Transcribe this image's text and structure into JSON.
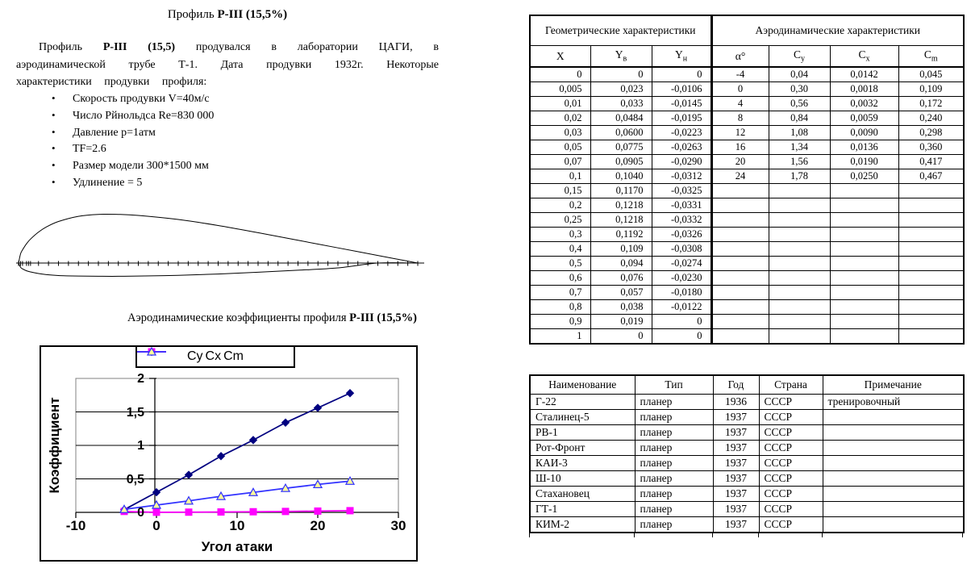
{
  "doc": {
    "title": {
      "normal": "Профиль ",
      "bold": "Р-III (15,5%)"
    },
    "paragraph": {
      "start": "Профиль ",
      "bold": "Р-III (15,5)",
      "rest": " продувался в лаборатории ЦАГИ, в аэродинамической трубе Т-1. Дата продувки 1932г. Некоторые характеристики продувки профиля:"
    },
    "bullets": [
      "Скорость продувки V=40м/с",
      "Число Рйнольдса Re=830 000",
      "Давление р=1атм",
      "TF=2.6",
      "Размер модели 300*1500 мм",
      "Удлинение = 5"
    ],
    "figure_caption": {
      "normal": "Аэродинамические коэффициенты профиля ",
      "bold": "Р-III (15,5%)"
    }
  },
  "geo_table": {
    "section_headers": [
      "Геометрические характеристики",
      "Аэродинамические характеристики"
    ],
    "col_headers": [
      {
        "base": "X",
        "sub": ""
      },
      {
        "base": "Y",
        "sub": "в"
      },
      {
        "base": "Y",
        "sub": "н"
      },
      {
        "base": "α°",
        "sub": ""
      },
      {
        "base": "C",
        "sub": "y"
      },
      {
        "base": "C",
        "sub": "x"
      },
      {
        "base": "C",
        "sub": "m"
      }
    ],
    "geometry_rows": [
      [
        "0",
        "0",
        "0"
      ],
      [
        "0,005",
        "0,023",
        "-0,0106"
      ],
      [
        "0,01",
        "0,033",
        "-0,0145"
      ],
      [
        "0,02",
        "0,0484",
        "-0,0195"
      ],
      [
        "0,03",
        "0,0600",
        "-0,0223"
      ],
      [
        "0,05",
        "0,0775",
        "-0,0263"
      ],
      [
        "0,07",
        "0,0905",
        "-0,0290"
      ],
      [
        "0,1",
        "0,1040",
        "-0,0312"
      ],
      [
        "0,15",
        "0,1170",
        "-0,0325"
      ],
      [
        "0,2",
        "0,1218",
        "-0,0331"
      ],
      [
        "0,25",
        "0,1218",
        "-0,0332"
      ],
      [
        "0,3",
        "0,1192",
        "-0,0326"
      ],
      [
        "0,4",
        "0,109",
        "-0,0308"
      ],
      [
        "0,5",
        "0,094",
        "-0,0274"
      ],
      [
        "0,6",
        "0,076",
        "-0,0230"
      ],
      [
        "0,7",
        "0,057",
        "-0,0180"
      ],
      [
        "0,8",
        "0,038",
        "-0,0122"
      ],
      [
        "0,9",
        "0,019",
        "0"
      ],
      [
        "1",
        "0",
        "0"
      ]
    ],
    "aero_rows": [
      [
        "-4",
        "0,04",
        "0,0142",
        "0,045"
      ],
      [
        "0",
        "0,30",
        "0,0018",
        "0,109"
      ],
      [
        "4",
        "0,56",
        "0,0032",
        "0,172"
      ],
      [
        "8",
        "0,84",
        "0,0059",
        "0,240"
      ],
      [
        "12",
        "1,08",
        "0,0090",
        "0,298"
      ],
      [
        "16",
        "1,34",
        "0,0136",
        "0,360"
      ],
      [
        "20",
        "1,56",
        "0,0190",
        "0,417"
      ],
      [
        "24",
        "1,78",
        "0,0250",
        "0,467"
      ]
    ]
  },
  "glider_table": {
    "headers": [
      "Наименование",
      "Тип",
      "Год",
      "Страна",
      "Примечание"
    ],
    "rows": [
      [
        "Г-22",
        "планер",
        "1936",
        "СССР",
        "тренировочный"
      ],
      [
        "Сталинец-5",
        "планер",
        "1937",
        "СССР",
        ""
      ],
      [
        "РВ-1",
        "планер",
        "1937",
        "СССР",
        ""
      ],
      [
        "Рот-Фронт",
        "планер",
        "1937",
        "СССР",
        ""
      ],
      [
        "КАИ-3",
        "планер",
        "1937",
        "СССР",
        ""
      ],
      [
        "Ш-10",
        "планер",
        "1937",
        "СССР",
        ""
      ],
      [
        "Стахановец",
        "планер",
        "1937",
        "СССР",
        ""
      ],
      [
        "ГТ-1",
        "планер",
        "1937",
        "СССР",
        ""
      ],
      [
        "КИМ-2",
        "планер",
        "1937",
        "СССР",
        ""
      ]
    ]
  },
  "chart_data": {
    "type": "line",
    "x": [
      -4,
      0,
      4,
      8,
      12,
      16,
      20,
      24
    ],
    "series": [
      {
        "name": "Cy",
        "color": "#000080",
        "marker": "diamond",
        "marker_fill": "#000080",
        "values": [
          0.04,
          0.3,
          0.56,
          0.84,
          1.08,
          1.34,
          1.56,
          1.78
        ]
      },
      {
        "name": "Cx",
        "color": "#FF00FF",
        "marker": "square",
        "marker_fill": "#FF00FF",
        "values": [
          0.0142,
          0.0018,
          0.0032,
          0.0059,
          0.009,
          0.0136,
          0.019,
          0.025
        ]
      },
      {
        "name": "Cm",
        "color": "#3333FF",
        "marker": "triangle",
        "marker_fill": "#FFFF99",
        "values": [
          0.045,
          0.109,
          0.172,
          0.24,
          0.298,
          0.36,
          0.417,
          0.467
        ]
      }
    ],
    "xlabel": "Угол атаки",
    "ylabel": "Коэффициент",
    "xticks": [
      "-10",
      "0",
      "10",
      "20",
      "30"
    ],
    "xtick_values": [
      -10,
      0,
      10,
      20,
      30
    ],
    "yticks": [
      "0",
      "0,5",
      "1",
      "1,5",
      "2"
    ],
    "ytick_values": [
      0,
      0.5,
      1,
      1.5,
      2
    ],
    "xlim": [
      -10,
      30
    ],
    "ylim": [
      0,
      2
    ],
    "grid": true,
    "legend_position": "top",
    "plot_border_color": "#808080"
  },
  "airfoil": {
    "tick_step": 0.025,
    "extra_ticks": [
      0.005,
      0.01,
      0.02,
      0.03
    ]
  }
}
